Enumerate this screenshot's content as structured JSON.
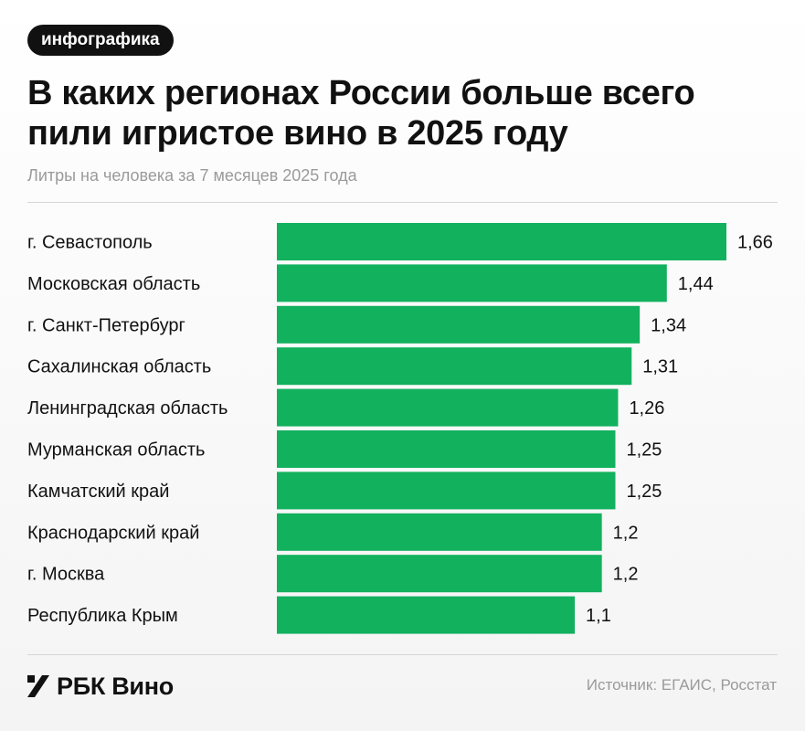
{
  "badge": "инфографика",
  "footer": {
    "logo_text": "РБК Вино",
    "source": "Источник: ЕГАИС, Росстат"
  },
  "colors": {
    "bar": "#12b15e",
    "text": "#111111",
    "muted": "#9a9a9a",
    "badge_bg": "#111111"
  },
  "chart_data": {
    "type": "bar",
    "orientation": "horizontal",
    "title": "В каких регионах России больше всего пили игристое вино в 2025 году",
    "subtitle": "Литры на человека за 7 месяцев 2025 года",
    "categories": [
      "г. Севастополь",
      "Московская область",
      "г. Санкт-Петербург",
      "Сахалинская область",
      "Ленинградская область",
      "Мурманская область",
      "Камчатский край",
      "Краснодарский край",
      "г. Москва",
      "Республика Крым"
    ],
    "values": [
      1.66,
      1.44,
      1.34,
      1.31,
      1.26,
      1.25,
      1.25,
      1.2,
      1.2,
      1.1
    ],
    "value_labels": [
      "1,66",
      "1,44",
      "1,34",
      "1,31",
      "1,26",
      "1,25",
      "1,25",
      "1,2",
      "1,2",
      "1,1"
    ],
    "xlim": [
      0,
      1.66
    ],
    "grid": false,
    "legend": "none"
  }
}
